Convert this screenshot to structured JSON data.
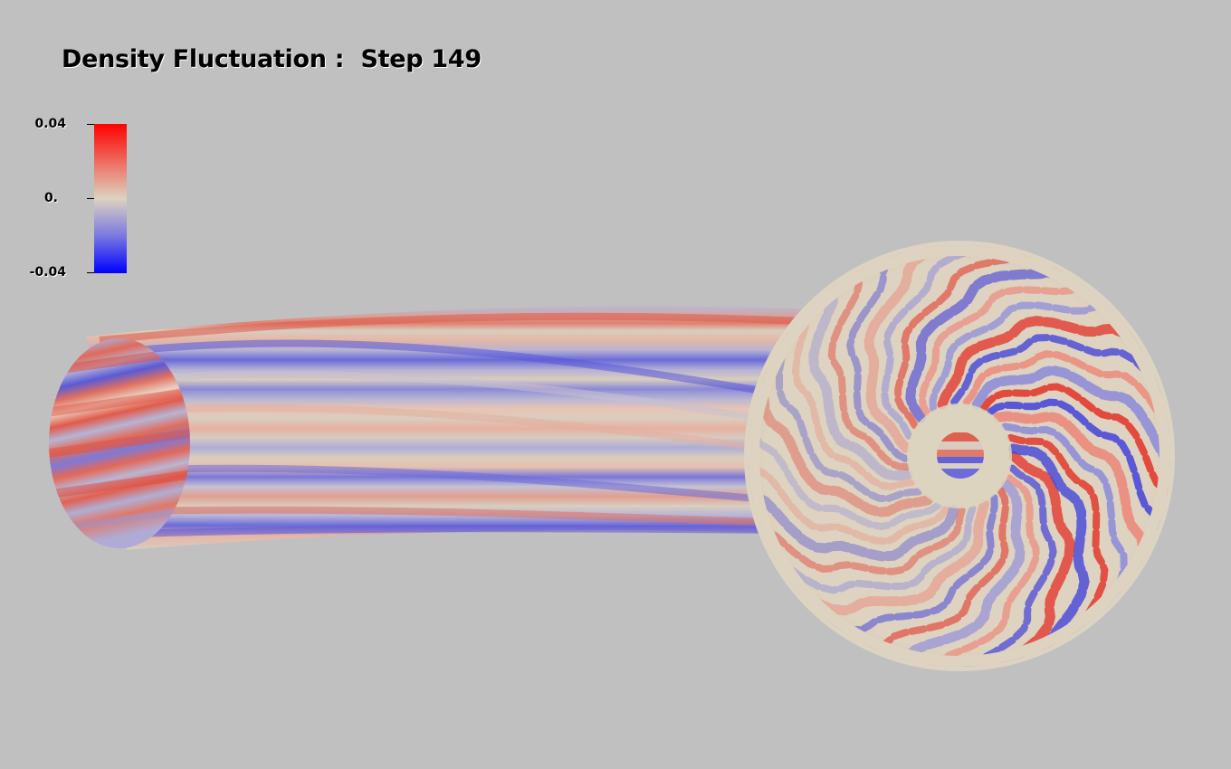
{
  "title": "Density Fluctuation :  Step 149",
  "colorbar": {
    "max_label": "0.04",
    "mid_label": "0.",
    "min_label": "-0.04",
    "colors": {
      "high": "#ff0000",
      "mid": "#ddd3c0",
      "low": "#0000ff"
    }
  },
  "background": "#c0c0c0"
}
